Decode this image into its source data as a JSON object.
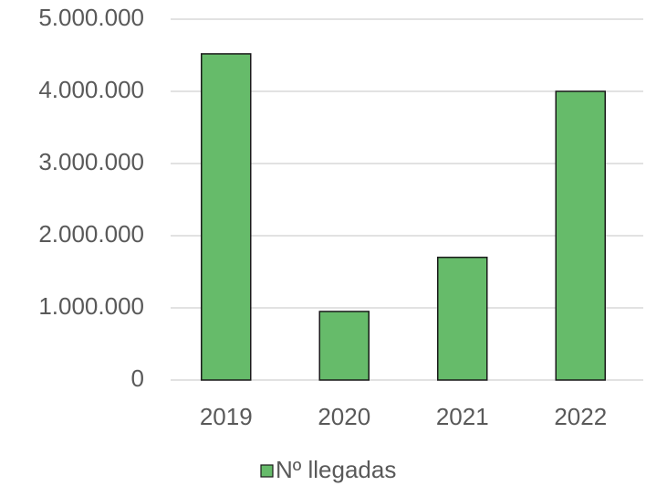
{
  "chart_data": {
    "type": "bar",
    "categories": [
      "2019",
      "2020",
      "2021",
      "2022"
    ],
    "series": [
      {
        "name": "Nº llegadas",
        "color": "#66bb6a",
        "values": [
          4520000,
          950000,
          1700000,
          4000000
        ]
      }
    ],
    "ylim": [
      0,
      5000000
    ],
    "yticks": [
      0,
      {
        "value": 1000000,
        "label": "1.000.000"
      },
      {
        "value": 2000000,
        "label": "2.000.000"
      },
      {
        "value": 3000000,
        "label": "3.000.000"
      },
      {
        "value": 4000000,
        "label": "4.000.000"
      },
      {
        "value": 5000000,
        "label": "5.000.000"
      }
    ],
    "grid": true,
    "legend": "bottom"
  }
}
